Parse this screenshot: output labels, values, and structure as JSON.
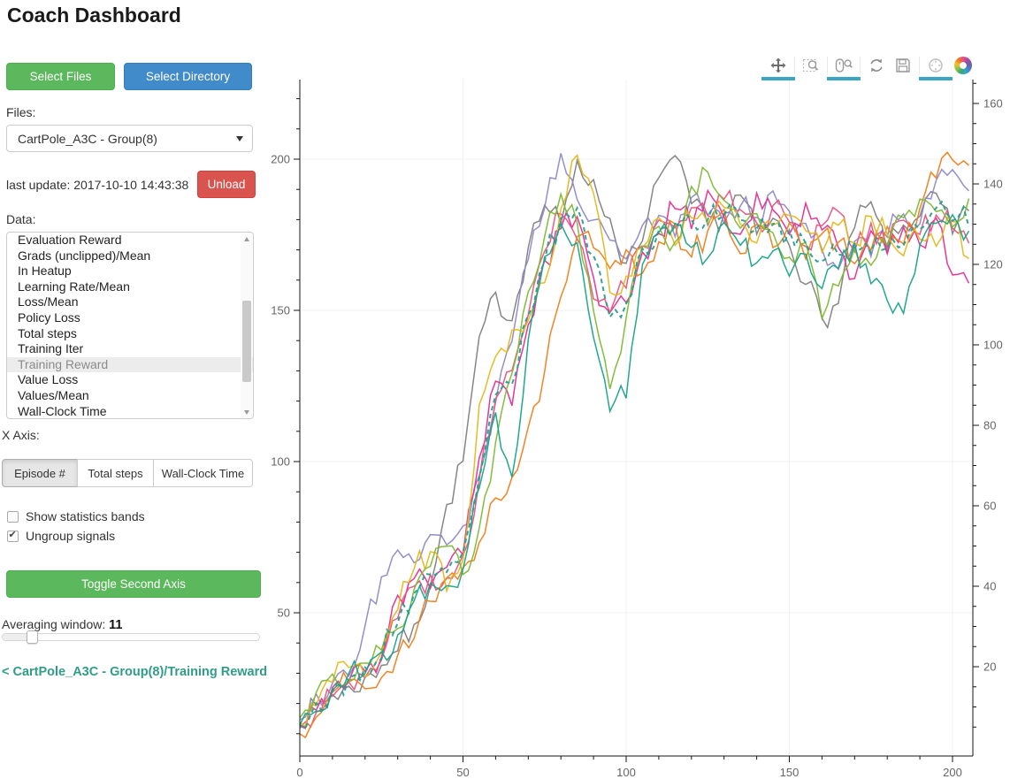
{
  "header": {
    "title": "Coach Dashboard"
  },
  "sidebar": {
    "select_files_label": "Select Files",
    "select_directory_label": "Select Directory",
    "files_label": "Files:",
    "files_selected": "CartPole_A3C - Group(8)",
    "files_caret_icon": "caret-down",
    "last_update": "last update: 2017-10-10 14:43:38",
    "unload_label": "Unload",
    "data_label": "Data:",
    "data_items": [
      "Evaluation Reward",
      "Grads (unclipped)/Mean",
      "In Heatup",
      "Learning Rate/Mean",
      "Loss/Mean",
      "Policy Loss",
      "Total steps",
      "Training Iter",
      "Training Reward",
      "Value Loss",
      "Values/Mean",
      "Wall-Clock Time"
    ],
    "data_selected": "Training Reward",
    "x_axis_label": "X Axis:",
    "x_axis_options": [
      "Episode #",
      "Total steps",
      "Wall-Clock Time"
    ],
    "x_axis_selected": "Episode #",
    "checkboxes": [
      {
        "label": "Show statistics bands",
        "checked": false
      },
      {
        "label": "Ungroup signals",
        "checked": true
      }
    ],
    "toggle_second_axis_label": "Toggle Second Axis",
    "averaging_window_label": "Averaging window:",
    "averaging_window_value": "11",
    "breadcrumb_link": "< CartPole_A3C - Group(8)/Training Reward",
    "colors": {
      "green": "#5cb85c",
      "blue": "#428bca",
      "red": "#d9534f",
      "link_teal": "#2f9d87"
    }
  },
  "toolbar": {
    "active_indicator_color": "#3aa6c4",
    "tools": [
      {
        "name": "pan",
        "icon": "move-arrows-icon",
        "active": true
      },
      {
        "name": "box-zoom",
        "icon": "box-zoom-icon",
        "active": false
      },
      {
        "name": "wheel-zoom",
        "icon": "mouse-magnifier-icon",
        "active": true
      },
      {
        "name": "reset",
        "icon": "refresh-icon",
        "active": false
      },
      {
        "name": "save",
        "icon": "floppy-icon",
        "active": false
      },
      {
        "name": "hover",
        "icon": "circle-crosshair-icon",
        "active": true
      },
      {
        "name": "bokeh-logo",
        "icon": "bokeh-logo-icon",
        "active": false
      }
    ]
  },
  "chart_data": {
    "type": "line",
    "title": "",
    "xlabel": "",
    "ylabel": "",
    "grid": true,
    "legend": "none",
    "x_ticks": [
      0,
      50,
      100,
      150,
      200
    ],
    "y_left_ticks": [
      50,
      100,
      150,
      200
    ],
    "y_right_ticks": [
      20,
      40,
      60,
      80,
      100,
      120,
      140,
      160
    ],
    "x_range": [
      0,
      206
    ],
    "y_left_range": [
      3,
      226
    ],
    "y_right_range": [
      5,
      164
    ],
    "x_start": 0,
    "x_step": 5,
    "series": [
      {
        "name": "series-1",
        "color": "#7f7f7f",
        "style": "solid",
        "values": [
          14,
          19,
          23,
          25,
          28,
          33,
          38,
          45,
          60,
          85,
          100,
          140,
          155,
          147,
          172,
          185,
          178,
          200,
          192,
          180,
          165,
          172,
          195,
          200,
          185,
          178,
          182,
          188,
          175,
          180,
          172,
          160,
          147,
          152,
          178,
          185,
          170,
          178,
          182,
          188,
          175,
          183
        ]
      },
      {
        "name": "series-2",
        "color": "#8d89c8",
        "style": "solid",
        "values": [
          16,
          22,
          26,
          30,
          45,
          62,
          72,
          68,
          75,
          72,
          78,
          95,
          120,
          140,
          168,
          185,
          202,
          188,
          180,
          172,
          168,
          178,
          182,
          175,
          188,
          182,
          178,
          185,
          180,
          188,
          182,
          178,
          170,
          165,
          172,
          168,
          175,
          182,
          178,
          192,
          196,
          190
        ]
      },
      {
        "name": "series-3",
        "color": "#e32d91",
        "style": "solid",
        "values": [
          13,
          18,
          24,
          27,
          30,
          35,
          55,
          62,
          58,
          65,
          70,
          100,
          128,
          118,
          145,
          165,
          178,
          182,
          160,
          148,
          152,
          168,
          175,
          185,
          178,
          190,
          182,
          175,
          188,
          182,
          175,
          185,
          178,
          170,
          162,
          175,
          168,
          178,
          172,
          180,
          162,
          158
        ]
      },
      {
        "name": "series-4",
        "color": "#e8537f",
        "style": "solid",
        "values": [
          12,
          17,
          22,
          26,
          29,
          33,
          48,
          58,
          62,
          60,
          68,
          95,
          122,
          130,
          150,
          170,
          182,
          175,
          155,
          150,
          158,
          172,
          180,
          178,
          185,
          180,
          188,
          182,
          178,
          185,
          180,
          172,
          178,
          182,
          170,
          178,
          172,
          180,
          175,
          182,
          178,
          172
        ]
      },
      {
        "name": "series-5",
        "color": "#ee7d18",
        "style": "solid",
        "values": [
          11,
          16,
          25,
          28,
          26,
          30,
          35,
          42,
          55,
          60,
          65,
          72,
          88,
          95,
          110,
          130,
          155,
          175,
          172,
          165,
          170,
          162,
          172,
          178,
          168,
          175,
          182,
          170,
          178,
          172,
          180,
          168,
          175,
          172,
          165,
          170,
          178,
          172,
          185,
          195,
          200,
          198
        ]
      },
      {
        "name": "series-6",
        "color": "#e4b71a",
        "style": "solid",
        "values": [
          13,
          20,
          28,
          32,
          30,
          36,
          52,
          65,
          70,
          58,
          66,
          120,
          135,
          142,
          148,
          160,
          185,
          200,
          190,
          155,
          160,
          172,
          180,
          172,
          182,
          178,
          185,
          180,
          172,
          178,
          182,
          175,
          170,
          178,
          172,
          180,
          175,
          168,
          175,
          172,
          180,
          168
        ]
      },
      {
        "name": "series-7",
        "color": "#7db832",
        "style": "solid",
        "values": [
          14,
          24,
          30,
          28,
          32,
          38,
          45,
          58,
          66,
          72,
          62,
          78,
          105,
          128,
          155,
          175,
          188,
          178,
          150,
          125,
          148,
          170,
          178,
          172,
          190,
          195,
          185,
          178,
          182,
          175,
          168,
          172,
          148,
          158,
          170,
          165,
          172,
          180,
          188,
          182,
          178,
          186
        ]
      },
      {
        "name": "series-8",
        "color": "#17a287",
        "style": "solid",
        "values": [
          12,
          18,
          25,
          29,
          31,
          36,
          42,
          55,
          60,
          58,
          64,
          92,
          115,
          95,
          140,
          168,
          180,
          172,
          140,
          118,
          122,
          165,
          175,
          180,
          172,
          168,
          178,
          172,
          165,
          170,
          162,
          170,
          158,
          165,
          172,
          160,
          152,
          148,
          172,
          178,
          182,
          175
        ]
      },
      {
        "name": "series-dashed-mean",
        "color": "#2a9d8f",
        "style": "dashed",
        "values": [
          13,
          19,
          25,
          28,
          31,
          36,
          48,
          57,
          62,
          64,
          70,
          96,
          121,
          127,
          148,
          167,
          181,
          184,
          167,
          147,
          153,
          170,
          177,
          178,
          181,
          181,
          182,
          179,
          177,
          179,
          175,
          172,
          166,
          168,
          170,
          170,
          170,
          173,
          178,
          184,
          181,
          179
        ]
      }
    ]
  }
}
